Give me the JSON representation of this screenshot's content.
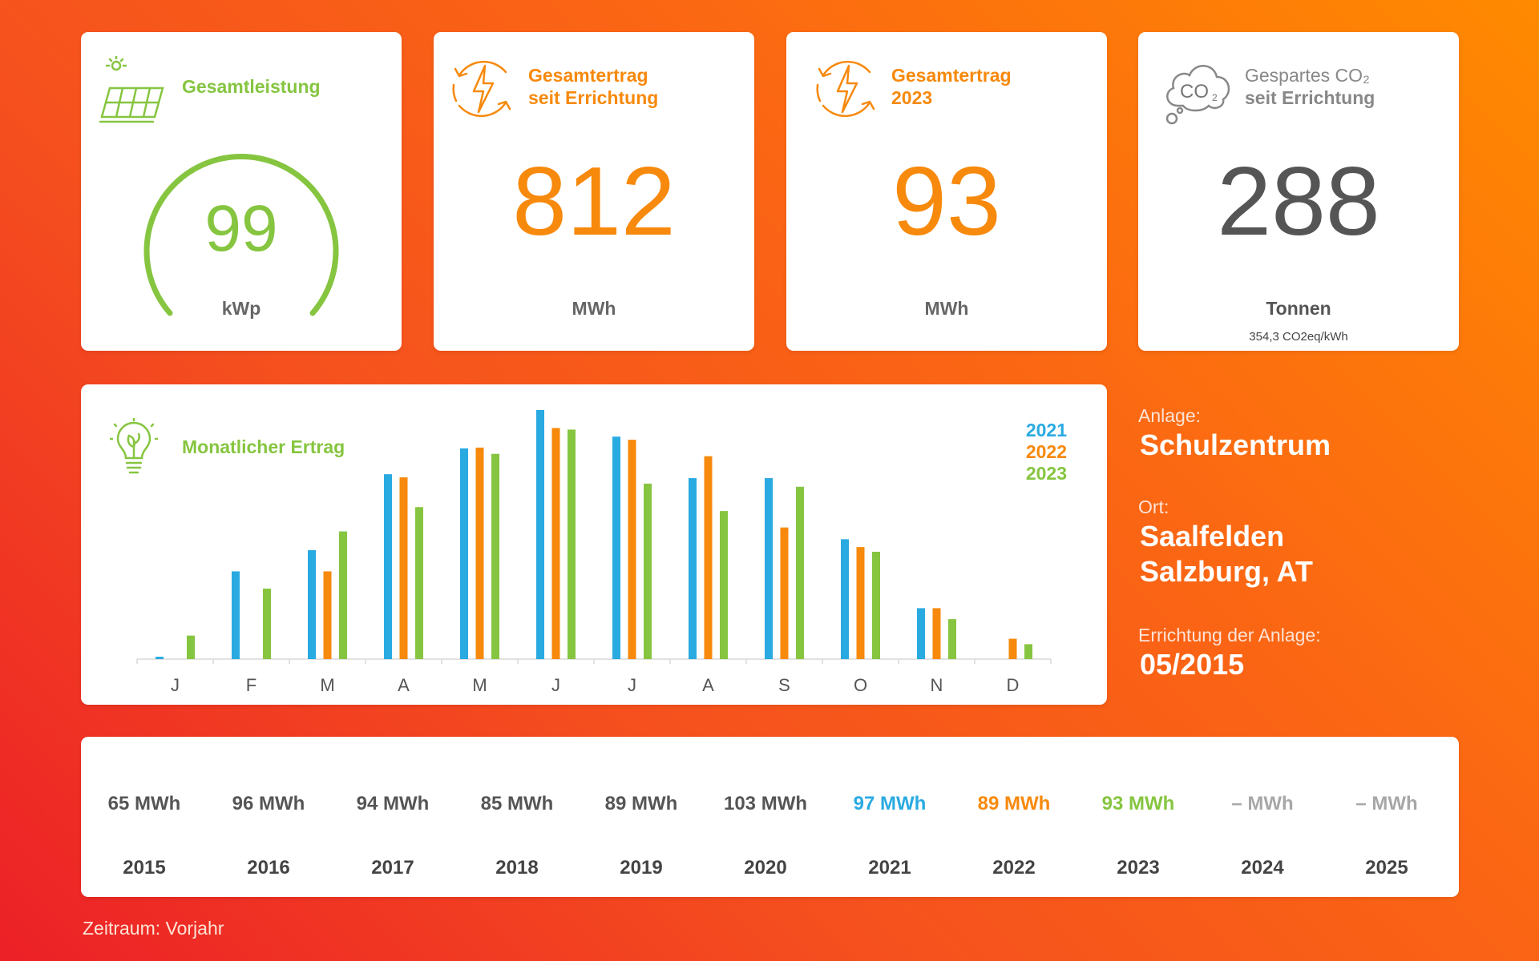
{
  "kpis": {
    "gesamtleistung": {
      "title": "Gesamtleistung",
      "value": "99",
      "unit": "kWp"
    },
    "gesamtertrag_total": {
      "title_line1": "Gesamtertrag",
      "title_line2": "seit Errichtung",
      "value": "812",
      "unit": "MWh"
    },
    "gesamtertrag_year": {
      "title_line1": "Gesamtertrag",
      "title_line2": "2023",
      "value": "93",
      "unit": "MWh"
    },
    "co2": {
      "title_line1": "Gespartes CO₂",
      "title_line2": "seit Errichtung",
      "value": "288",
      "unit": "Tonnen",
      "note": "354,3 CO2eq/kWh"
    }
  },
  "icons": {
    "solar_panel": "solar-panel-icon",
    "energy_cycle": "lightning-cycle-icon",
    "co2_cloud": "co2-cloud-icon",
    "bulb": "leaf-bulb-icon"
  },
  "info": {
    "anlage_label": "Anlage:",
    "anlage_value": "Schulzentrum",
    "ort_label": "Ort:",
    "ort_line1": "Saalfelden",
    "ort_line2": "Salzburg, AT",
    "errichtung_label": "Errichtung der Anlage:",
    "errichtung_value": "05/2015"
  },
  "chart_data": {
    "type": "bar",
    "title": "Monatlicher Ertrag",
    "categories": [
      "J",
      "F",
      "M",
      "A",
      "M",
      "J",
      "J",
      "A",
      "S",
      "O",
      "N",
      "D"
    ],
    "series": [
      {
        "name": "2021",
        "color": "#29aae1",
        "values": [
          0.3,
          11.2,
          13.9,
          23.6,
          26.9,
          31.8,
          28.4,
          23.1,
          23.1,
          15.3,
          6.5,
          0
        ]
      },
      {
        "name": "2022",
        "color": "#f7890c",
        "values": [
          0,
          0,
          11.2,
          23.2,
          27.0,
          29.5,
          28.0,
          25.9,
          16.8,
          14.3,
          6.5,
          2.6
        ]
      },
      {
        "name": "2023",
        "color": "#86c540",
        "values": [
          3.0,
          9.0,
          16.3,
          19.4,
          26.2,
          29.3,
          22.4,
          18.9,
          22.0,
          13.7,
          5.1,
          1.9
        ]
      }
    ],
    "legend_position": "top-right",
    "ylim": [
      0,
      32
    ]
  },
  "years": [
    {
      "year": "2015",
      "value": "65 MWh",
      "color": "#555555"
    },
    {
      "year": "2016",
      "value": "96 MWh",
      "color": "#555555"
    },
    {
      "year": "2017",
      "value": "94 MWh",
      "color": "#555555"
    },
    {
      "year": "2018",
      "value": "85 MWh",
      "color": "#555555"
    },
    {
      "year": "2019",
      "value": "89 MWh",
      "color": "#555555"
    },
    {
      "year": "2020",
      "value": "103 MWh",
      "color": "#555555"
    },
    {
      "year": "2021",
      "value": "97 MWh",
      "color": "#29aae1"
    },
    {
      "year": "2022",
      "value": "89 MWh",
      "color": "#f7890c"
    },
    {
      "year": "2023",
      "value": "93 MWh",
      "color": "#86c540"
    },
    {
      "year": "2024",
      "value": "– MWh",
      "color": "#a7a7a7"
    },
    {
      "year": "2025",
      "value": "– MWh",
      "color": "#a7a7a7"
    }
  ],
  "footer": "Zeitraum: Vorjahr"
}
